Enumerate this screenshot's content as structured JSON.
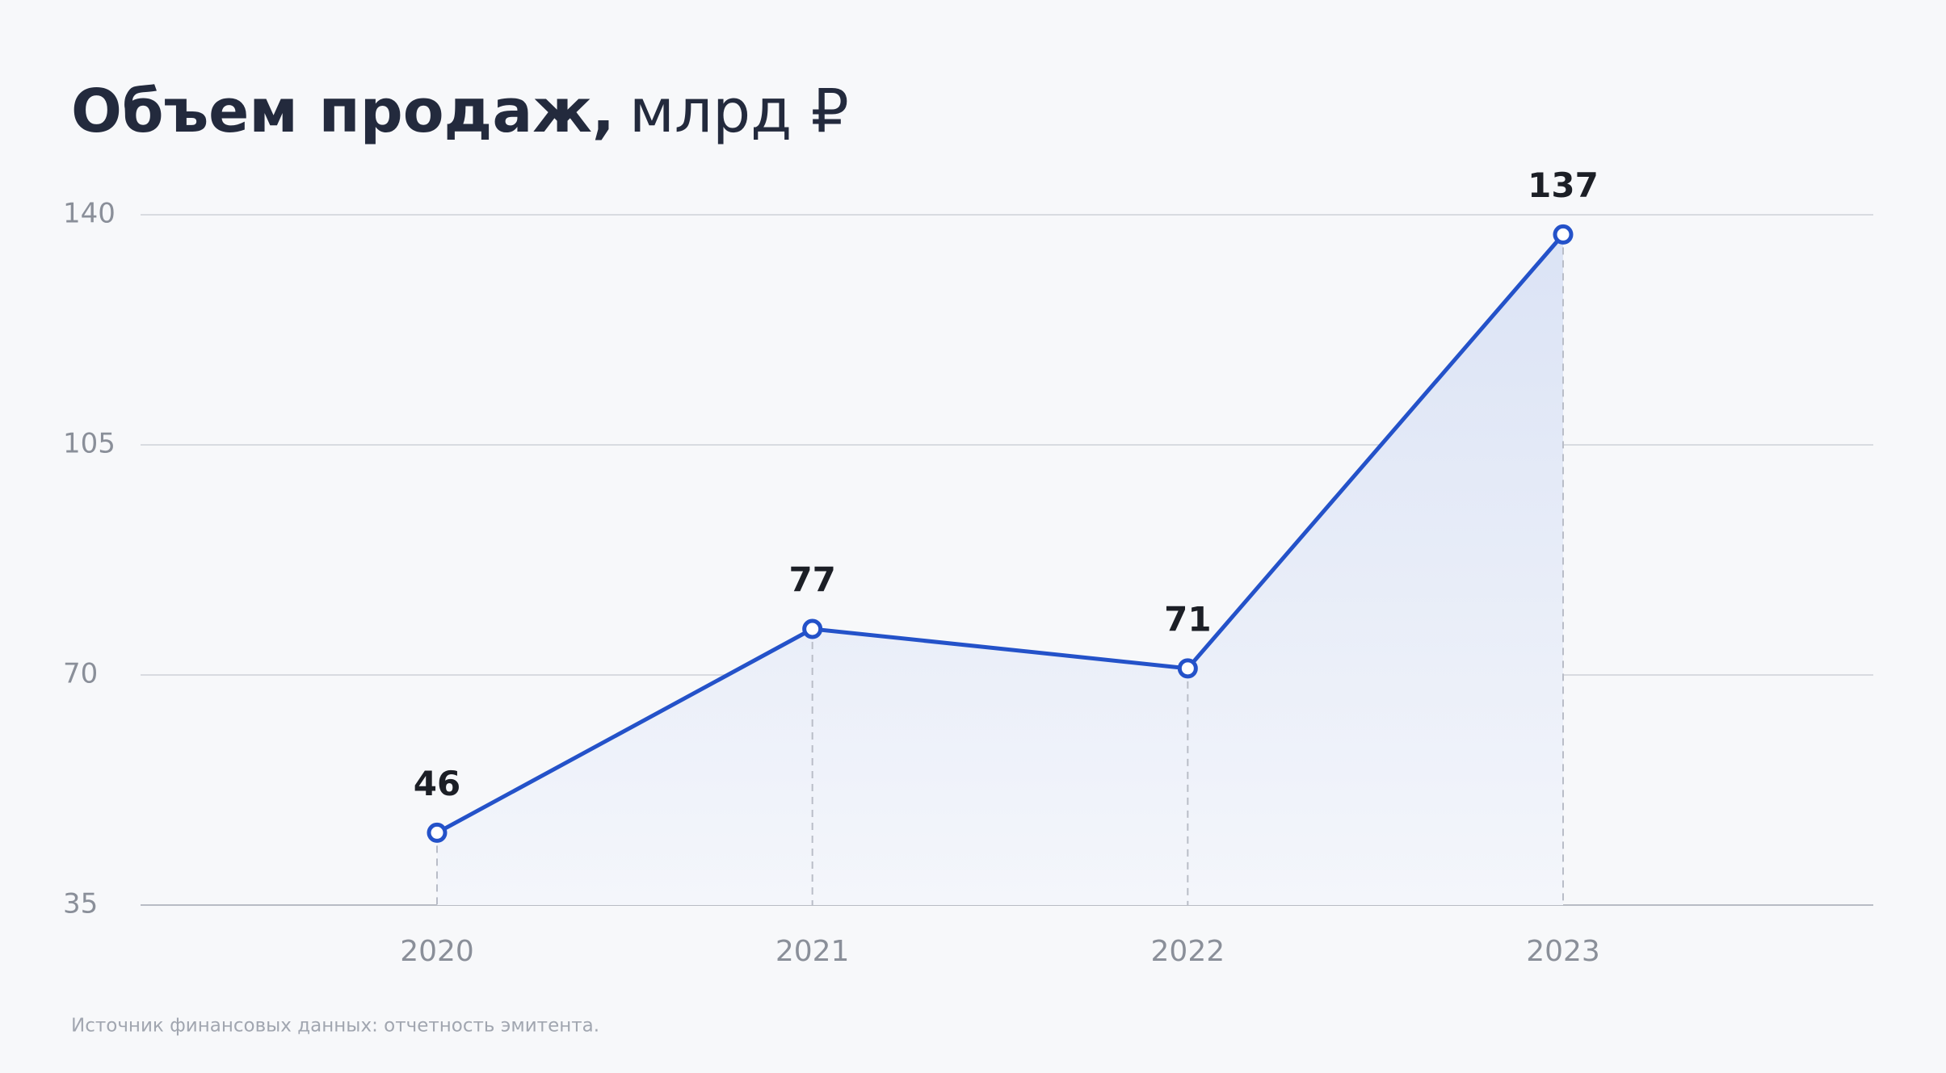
{
  "chart_data": {
    "type": "line",
    "title": "Объем продаж,",
    "title_unit": "млрд ₽",
    "categories": [
      "2020",
      "2021",
      "2022",
      "2023"
    ],
    "series": [
      {
        "name": "Объем продаж",
        "color": "#2452c9",
        "values": [
          46,
          77,
          71,
          137
        ]
      }
    ],
    "ylim": [
      35,
      140
    ],
    "yticks": [
      35,
      70,
      105,
      140
    ],
    "grid": true,
    "area": true,
    "source": "Источник финансовых данных: отчетность эмитента."
  }
}
